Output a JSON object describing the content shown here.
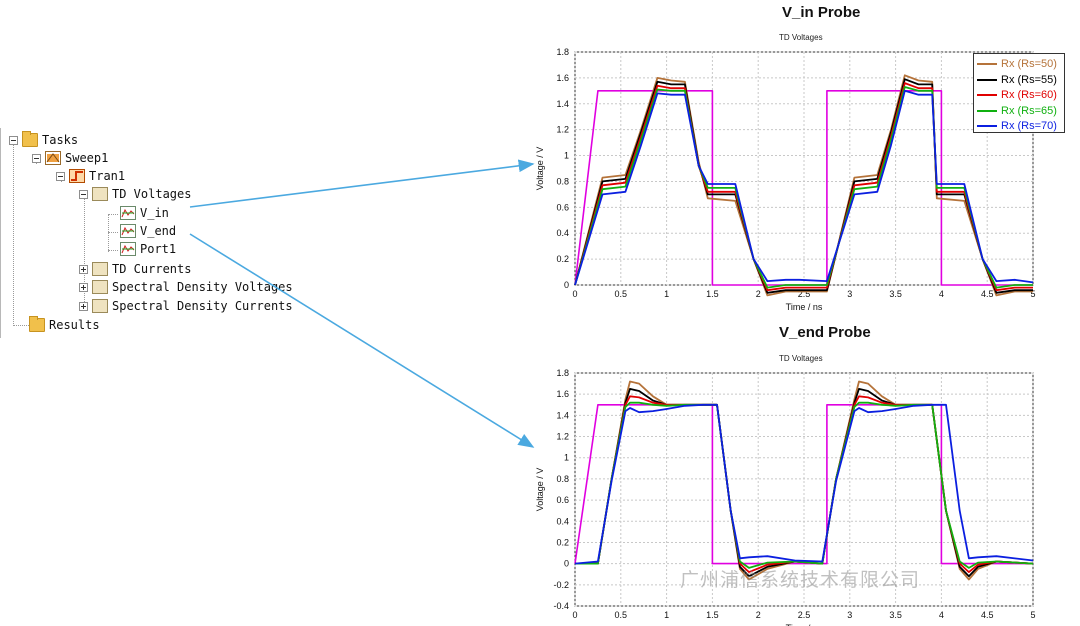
{
  "tree": {
    "tasks": "Tasks",
    "sweep": "Sweep1",
    "tran": "Tran1",
    "td_voltages": "TD Voltages",
    "v_in": "V_in",
    "v_end": "V_end",
    "port1": "Port1",
    "td_currents": "TD Currents",
    "sd_voltages": "Spectral Density Voltages",
    "sd_currents": "Spectral Density Currents",
    "results": "Results"
  },
  "legend": [
    {
      "label": "Rx (Rs=50)",
      "color": "#b5733a"
    },
    {
      "label": "Rx (Rs=55)",
      "color": "#000000"
    },
    {
      "label": "Rx (Rs=60)",
      "color": "#e00000"
    },
    {
      "label": "Rx (Rs=65)",
      "color": "#10b010"
    },
    {
      "label": "Rx (Rs=70)",
      "color": "#0b1fe0"
    }
  ],
  "source_color": "#e000e0",
  "watermark": "广州浦信系统技术有限公司",
  "chart_data": [
    {
      "type": "line",
      "title": "V_in Probe",
      "subtitle": "TD Voltages",
      "xlabel": "Time / ns",
      "ylabel": "Voltage / V",
      "xlim": [
        0,
        5
      ],
      "ylim": [
        0,
        1.8
      ],
      "xticks": [
        0,
        0.5,
        1,
        1.5,
        2,
        2.5,
        3,
        3.5,
        4,
        4.5,
        5
      ],
      "xtick_labels": [
        "0",
        "0.5",
        "1",
        "1.5",
        "2",
        "2.5",
        "3",
        "3.5",
        "4",
        "4.5",
        "5"
      ],
      "yticks": [
        0,
        0.2,
        0.4,
        0.6,
        0.8,
        1,
        1.2,
        1.4,
        1.6,
        1.8
      ],
      "ytick_labels": [
        "0",
        "0.2",
        "0.4",
        "0.6",
        "0.8",
        "1",
        "1.2",
        "1.4",
        "1.6",
        "1.8"
      ],
      "grid": true,
      "legend_position": "top-right",
      "series": [
        {
          "color": "#e000e0",
          "x": [
            0,
            0.25,
            1.5,
            1.5,
            2.75,
            2.75,
            4,
            4,
            5
          ],
          "y": [
            0,
            1.5,
            1.5,
            0,
            0,
            1.5,
            1.5,
            0,
            0
          ]
        },
        {
          "name": "Rx (Rs=50)",
          "color": "#b5733a",
          "x": [
            0,
            0.3,
            0.55,
            0.72,
            0.9,
            1.05,
            1.2,
            1.35,
            1.45,
            1.75,
            1.95,
            2.1,
            2.3,
            2.45,
            2.75,
            3.05,
            3.3,
            3.45,
            3.6,
            3.75,
            3.9,
            3.95,
            4.25,
            4.45,
            4.6,
            4.8,
            5
          ],
          "y": [
            0,
            0.83,
            0.85,
            1.2,
            1.6,
            1.58,
            1.57,
            0.95,
            0.67,
            0.65,
            0.2,
            -0.08,
            -0.05,
            -0.05,
            -0.05,
            0.83,
            0.85,
            1.2,
            1.62,
            1.58,
            1.57,
            0.67,
            0.65,
            0.2,
            -0.08,
            -0.05,
            -0.05
          ]
        },
        {
          "name": "Rx (Rs=55)",
          "color": "#000000",
          "x": [
            0,
            0.3,
            0.55,
            0.72,
            0.9,
            1.05,
            1.2,
            1.35,
            1.45,
            1.75,
            1.95,
            2.1,
            2.3,
            2.45,
            2.75,
            3.05,
            3.3,
            3.45,
            3.6,
            3.75,
            3.9,
            3.95,
            4.25,
            4.45,
            4.6,
            4.8,
            5
          ],
          "y": [
            0,
            0.8,
            0.82,
            1.18,
            1.57,
            1.55,
            1.55,
            0.93,
            0.7,
            0.7,
            0.2,
            -0.06,
            -0.04,
            -0.04,
            -0.04,
            0.8,
            0.82,
            1.18,
            1.59,
            1.55,
            1.55,
            0.7,
            0.7,
            0.2,
            -0.06,
            -0.04,
            -0.04
          ]
        },
        {
          "name": "Rx (Rs=60)",
          "color": "#e00000",
          "x": [
            0,
            0.3,
            0.55,
            0.72,
            0.9,
            1.05,
            1.2,
            1.35,
            1.45,
            1.75,
            1.95,
            2.1,
            2.3,
            2.45,
            2.75,
            3.05,
            3.3,
            3.45,
            3.6,
            3.75,
            3.9,
            3.95,
            4.25,
            4.45,
            4.6,
            4.8,
            5
          ],
          "y": [
            0,
            0.77,
            0.79,
            1.15,
            1.54,
            1.52,
            1.52,
            0.92,
            0.72,
            0.72,
            0.2,
            -0.04,
            -0.02,
            -0.02,
            -0.02,
            0.77,
            0.79,
            1.15,
            1.56,
            1.52,
            1.52,
            0.72,
            0.72,
            0.2,
            -0.04,
            -0.02,
            -0.02
          ]
        },
        {
          "name": "Rx (Rs=65)",
          "color": "#10b010",
          "x": [
            0,
            0.3,
            0.55,
            0.72,
            0.9,
            1.05,
            1.2,
            1.35,
            1.45,
            1.75,
            1.95,
            2.1,
            2.3,
            2.45,
            2.75,
            3.05,
            3.3,
            3.45,
            3.6,
            3.75,
            3.9,
            3.95,
            4.25,
            4.45,
            4.6,
            4.8,
            5
          ],
          "y": [
            0,
            0.74,
            0.76,
            1.12,
            1.51,
            1.5,
            1.5,
            0.92,
            0.75,
            0.75,
            0.2,
            -0.02,
            0.0,
            0.0,
            0.0,
            0.74,
            0.76,
            1.12,
            1.53,
            1.5,
            1.5,
            0.75,
            0.75,
            0.2,
            -0.02,
            0.0,
            0.0
          ]
        },
        {
          "name": "Rx (Rs=70)",
          "color": "#0b1fe0",
          "x": [
            0,
            0.3,
            0.55,
            0.72,
            0.9,
            1.05,
            1.2,
            1.35,
            1.45,
            1.75,
            1.95,
            2.1,
            2.3,
            2.45,
            2.75,
            3.05,
            3.3,
            3.45,
            3.6,
            3.75,
            3.9,
            3.95,
            4.25,
            4.45,
            4.6,
            4.8,
            5
          ],
          "y": [
            0,
            0.7,
            0.72,
            1.08,
            1.48,
            1.47,
            1.47,
            0.92,
            0.78,
            0.78,
            0.2,
            0.03,
            0.04,
            0.04,
            0.03,
            0.7,
            0.72,
            1.08,
            1.5,
            1.47,
            1.47,
            0.78,
            0.78,
            0.2,
            0.03,
            0.04,
            0.02
          ]
        }
      ]
    },
    {
      "type": "line",
      "title": "V_end Probe",
      "subtitle": "TD Voltages",
      "xlabel": "Time / ns",
      "ylabel": "Voltage / V",
      "xlim": [
        0,
        5
      ],
      "ylim": [
        -0.4,
        1.8
      ],
      "xticks": [
        0,
        0.5,
        1,
        1.5,
        2,
        2.5,
        3,
        3.5,
        4,
        4.5,
        5
      ],
      "xtick_labels": [
        "0",
        "0.5",
        "1",
        "1.5",
        "2",
        "2.5",
        "3",
        "3.5",
        "4",
        "4.5",
        "5"
      ],
      "yticks": [
        -0.4,
        -0.2,
        0,
        0.2,
        0.4,
        0.6,
        0.8,
        1,
        1.2,
        1.4,
        1.6,
        1.8
      ],
      "ytick_labels": [
        "-0.4",
        "-0.2",
        "0",
        "0.2",
        "0.4",
        "0.6",
        "0.8",
        "1",
        "1.2",
        "1.4",
        "1.6",
        "1.8"
      ],
      "grid": true,
      "series": [
        {
          "color": "#e000e0",
          "x": [
            0,
            0.25,
            1.5,
            1.5,
            2.75,
            2.75,
            4,
            4,
            5
          ],
          "y": [
            0,
            1.5,
            1.5,
            0,
            0,
            1.5,
            1.5,
            0,
            0
          ]
        },
        {
          "name": "Rx (Rs=50)",
          "color": "#b5733a",
          "x": [
            0,
            0.25,
            0.4,
            0.55,
            0.6,
            0.7,
            0.85,
            1.0,
            1.2,
            1.4,
            1.55,
            1.7,
            1.8,
            1.9,
            2.1,
            2.4,
            2.7,
            2.85,
            3.05,
            3.1,
            3.2,
            3.35,
            3.5,
            3.7,
            3.9,
            4.05,
            4.2,
            4.3,
            4.4,
            4.6,
            5
          ],
          "y": [
            0,
            0.0,
            0.8,
            1.55,
            1.72,
            1.7,
            1.58,
            1.5,
            1.5,
            1.5,
            1.5,
            0.5,
            -0.05,
            -0.15,
            -0.05,
            0.02,
            0.0,
            0.8,
            1.55,
            1.72,
            1.7,
            1.58,
            1.5,
            1.5,
            1.5,
            0.5,
            -0.05,
            -0.15,
            -0.05,
            0.02,
            0.0
          ]
        },
        {
          "name": "Rx (Rs=55)",
          "color": "#000000",
          "x": [
            0,
            0.25,
            0.4,
            0.55,
            0.6,
            0.7,
            0.85,
            1.0,
            1.2,
            1.4,
            1.55,
            1.7,
            1.8,
            1.9,
            2.1,
            2.4,
            2.7,
            2.85,
            3.05,
            3.1,
            3.2,
            3.35,
            3.5,
            3.7,
            3.9,
            4.05,
            4.2,
            4.3,
            4.4,
            4.6,
            5
          ],
          "y": [
            0,
            0.0,
            0.8,
            1.52,
            1.65,
            1.63,
            1.54,
            1.5,
            1.5,
            1.5,
            1.5,
            0.5,
            -0.03,
            -0.12,
            -0.03,
            0.02,
            0.0,
            0.8,
            1.52,
            1.65,
            1.63,
            1.54,
            1.5,
            1.5,
            1.5,
            0.5,
            -0.03,
            -0.12,
            -0.03,
            0.02,
            0.0
          ]
        },
        {
          "name": "Rx (Rs=60)",
          "color": "#e00000",
          "x": [
            0,
            0.25,
            0.4,
            0.55,
            0.6,
            0.7,
            0.85,
            1.0,
            1.2,
            1.4,
            1.55,
            1.7,
            1.8,
            1.9,
            2.1,
            2.4,
            2.7,
            2.85,
            3.05,
            3.1,
            3.2,
            3.35,
            3.5,
            3.7,
            3.9,
            4.05,
            4.2,
            4.3,
            4.4,
            4.6,
            5
          ],
          "y": [
            0,
            0.0,
            0.8,
            1.5,
            1.58,
            1.57,
            1.52,
            1.5,
            1.5,
            1.5,
            1.5,
            0.5,
            0.0,
            -0.08,
            -0.01,
            0.02,
            0.0,
            0.8,
            1.5,
            1.58,
            1.57,
            1.52,
            1.5,
            1.5,
            1.5,
            0.5,
            0.0,
            -0.08,
            -0.01,
            0.02,
            0.0
          ]
        },
        {
          "name": "Rx (Rs=65)",
          "color": "#10b010",
          "x": [
            0,
            0.25,
            0.4,
            0.55,
            0.6,
            0.7,
            0.85,
            1.0,
            1.2,
            1.4,
            1.55,
            1.7,
            1.8,
            1.9,
            2.1,
            2.4,
            2.7,
            2.85,
            3.05,
            3.1,
            3.2,
            3.35,
            3.5,
            3.7,
            3.9,
            4.05,
            4.2,
            4.3,
            4.4,
            4.6,
            5
          ],
          "y": [
            0,
            0.0,
            0.8,
            1.48,
            1.52,
            1.52,
            1.5,
            1.49,
            1.5,
            1.5,
            1.5,
            0.5,
            0.02,
            -0.04,
            0.01,
            0.02,
            0.0,
            0.8,
            1.48,
            1.52,
            1.52,
            1.5,
            1.49,
            1.5,
            1.5,
            0.5,
            0.02,
            -0.04,
            0.01,
            0.02,
            0.0
          ]
        },
        {
          "name": "Rx (Rs=70)",
          "color": "#0b1fe0",
          "x": [
            0,
            0.25,
            0.4,
            0.55,
            0.6,
            0.7,
            0.85,
            1.0,
            1.2,
            1.4,
            1.55,
            1.7,
            1.8,
            1.9,
            2.1,
            2.4,
            2.7,
            2.85,
            3.05,
            3.1,
            3.2,
            3.35,
            3.5,
            3.7,
            3.9,
            4.05,
            4.2,
            4.3,
            4.4,
            4.6,
            5
          ],
          "y": [
            0,
            0.02,
            0.78,
            1.44,
            1.47,
            1.43,
            1.44,
            1.46,
            1.49,
            1.5,
            1.5,
            0.5,
            0.05,
            0.06,
            0.07,
            0.03,
            0.02,
            0.78,
            1.44,
            1.47,
            1.43,
            1.44,
            1.46,
            1.49,
            1.5,
            1.5,
            0.5,
            0.05,
            0.06,
            0.07,
            0.03
          ]
        }
      ]
    }
  ]
}
